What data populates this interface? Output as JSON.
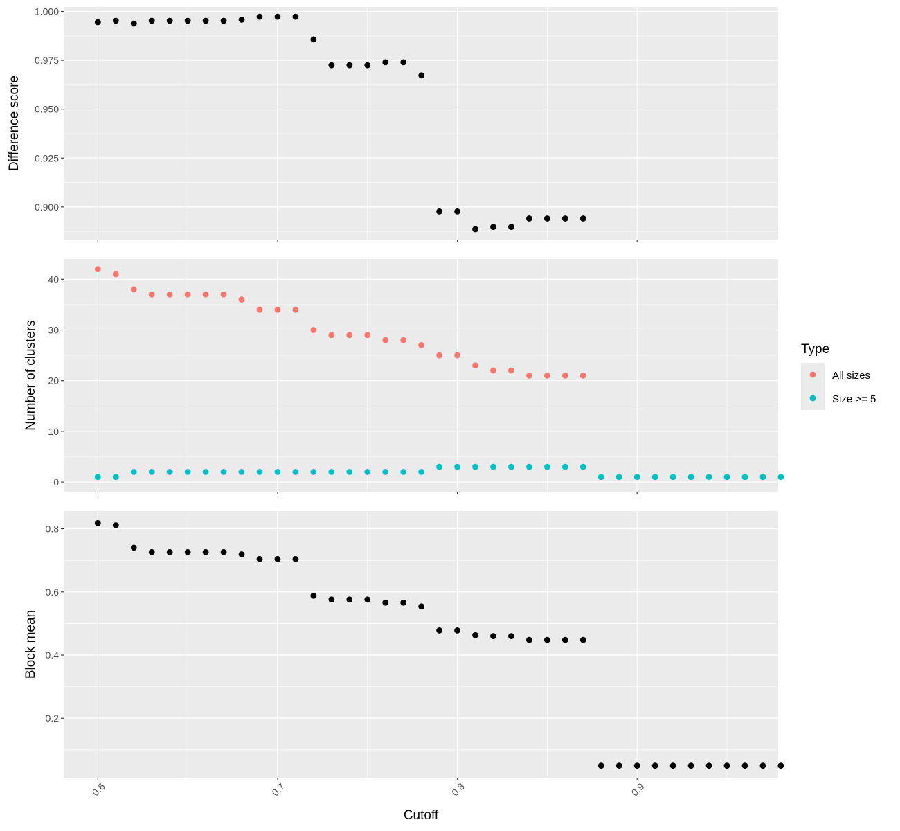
{
  "chart_data": {
    "type": "scatter",
    "layout": "three vertically stacked facets sharing x axis",
    "xlabel": "Cutoff",
    "x_ticks": [
      0.6,
      0.7,
      0.8,
      0.9
    ],
    "x_tick_labels": [
      "0.6",
      "0.7",
      "0.8",
      "0.9"
    ],
    "xlim": [
      0.581,
      0.9785
    ],
    "grid": true,
    "panel_background": "#ebebeb",
    "grid_color": "#ffffff",
    "point_color_default": "#000000",
    "legend": {
      "title": "Type",
      "placement": "right",
      "entries": [
        {
          "label": "All sizes",
          "color": "#f8766d"
        },
        {
          "label": "Size >= 5",
          "color": "#00bfc4"
        }
      ]
    },
    "panels": [
      {
        "ylabel": "Difference score",
        "ylim": [
          0.8833,
          1.0023
        ],
        "y_ticks": [
          0.9,
          0.925,
          0.95,
          0.975,
          1.0
        ],
        "y_tick_labels": [
          "0.900",
          "0.925",
          "0.950",
          "0.975",
          "1.000"
        ],
        "series": [
          {
            "color": "#000000",
            "x": [
              0.6,
              0.61,
              0.62,
              0.63,
              0.64,
              0.65,
              0.66,
              0.67,
              0.68,
              0.69,
              0.7,
              0.71,
              0.72,
              0.73,
              0.74,
              0.75,
              0.76,
              0.77,
              0.78,
              0.79,
              0.8,
              0.81,
              0.82,
              0.83,
              0.84,
              0.85,
              0.86,
              0.87
            ],
            "y": [
              0.9945,
              0.9952,
              0.9938,
              0.9952,
              0.9952,
              0.9952,
              0.9952,
              0.9952,
              0.9958,
              0.9973,
              0.9973,
              0.9973,
              0.9857,
              0.9725,
              0.9725,
              0.9725,
              0.974,
              0.974,
              0.9673,
              0.8977,
              0.8977,
              0.8886,
              0.8898,
              0.8898,
              0.8941,
              0.8941,
              0.8941,
              0.8941
            ]
          }
        ]
      },
      {
        "ylabel": "Number of clusters",
        "ylim": [
          -1.9,
          44.0
        ],
        "y_ticks": [
          0,
          10,
          20,
          30,
          40
        ],
        "y_tick_labels": [
          "0",
          "10",
          "20",
          "30",
          "40"
        ],
        "series": [
          {
            "name": "All sizes",
            "color": "#f8766d",
            "x": [
              0.6,
              0.61,
              0.62,
              0.63,
              0.64,
              0.65,
              0.66,
              0.67,
              0.68,
              0.69,
              0.7,
              0.71,
              0.72,
              0.73,
              0.74,
              0.75,
              0.76,
              0.77,
              0.78,
              0.79,
              0.8,
              0.81,
              0.82,
              0.83,
              0.84,
              0.85,
              0.86,
              0.87
            ],
            "y": [
              42,
              41,
              38,
              37,
              37,
              37,
              37,
              37,
              36,
              34,
              34,
              34,
              30,
              29,
              29,
              29,
              28,
              28,
              27,
              25,
              25,
              23,
              22,
              22,
              21,
              21,
              21,
              21
            ]
          },
          {
            "name": "Size >= 5",
            "color": "#00bfc4",
            "x": [
              0.6,
              0.61,
              0.62,
              0.63,
              0.64,
              0.65,
              0.66,
              0.67,
              0.68,
              0.69,
              0.7,
              0.71,
              0.72,
              0.73,
              0.74,
              0.75,
              0.76,
              0.77,
              0.78,
              0.79,
              0.8,
              0.81,
              0.82,
              0.83,
              0.84,
              0.85,
              0.86,
              0.87,
              0.88,
              0.89,
              0.9,
              0.91,
              0.92,
              0.93,
              0.94,
              0.95,
              0.96,
              0.97,
              0.98
            ],
            "y": [
              1,
              1,
              2,
              2,
              2,
              2,
              2,
              2,
              2,
              2,
              2,
              2,
              2,
              2,
              2,
              2,
              2,
              2,
              2,
              3,
              3,
              3,
              3,
              3,
              3,
              3,
              3,
              3,
              1,
              1,
              1,
              1,
              1,
              1,
              1,
              1,
              1,
              1,
              1
            ]
          }
        ]
      },
      {
        "ylabel": "Block mean",
        "ylim": [
          0.012,
          0.856
        ],
        "y_ticks": [
          0.2,
          0.4,
          0.6,
          0.8
        ],
        "y_tick_labels": [
          "0.2",
          "0.4",
          "0.6",
          "0.8"
        ],
        "series": [
          {
            "color": "#000000",
            "x": [
              0.6,
              0.61,
              0.62,
              0.63,
              0.64,
              0.65,
              0.66,
              0.67,
              0.68,
              0.69,
              0.7,
              0.71,
              0.72,
              0.73,
              0.74,
              0.75,
              0.76,
              0.77,
              0.78,
              0.79,
              0.8,
              0.81,
              0.82,
              0.83,
              0.84,
              0.85,
              0.86,
              0.87,
              0.88,
              0.89,
              0.9,
              0.91,
              0.92,
              0.93,
              0.94,
              0.95,
              0.96,
              0.97,
              0.98
            ],
            "y": [
              0.818,
              0.811,
              0.74,
              0.726,
              0.726,
              0.726,
              0.726,
              0.726,
              0.719,
              0.704,
              0.704,
              0.704,
              0.588,
              0.576,
              0.576,
              0.576,
              0.566,
              0.566,
              0.554,
              0.478,
              0.478,
              0.463,
              0.46,
              0.46,
              0.448,
              0.448,
              0.448,
              0.448,
              0.05,
              0.05,
              0.05,
              0.05,
              0.05,
              0.05,
              0.05,
              0.05,
              0.05,
              0.05,
              0.05
            ]
          }
        ]
      }
    ]
  }
}
